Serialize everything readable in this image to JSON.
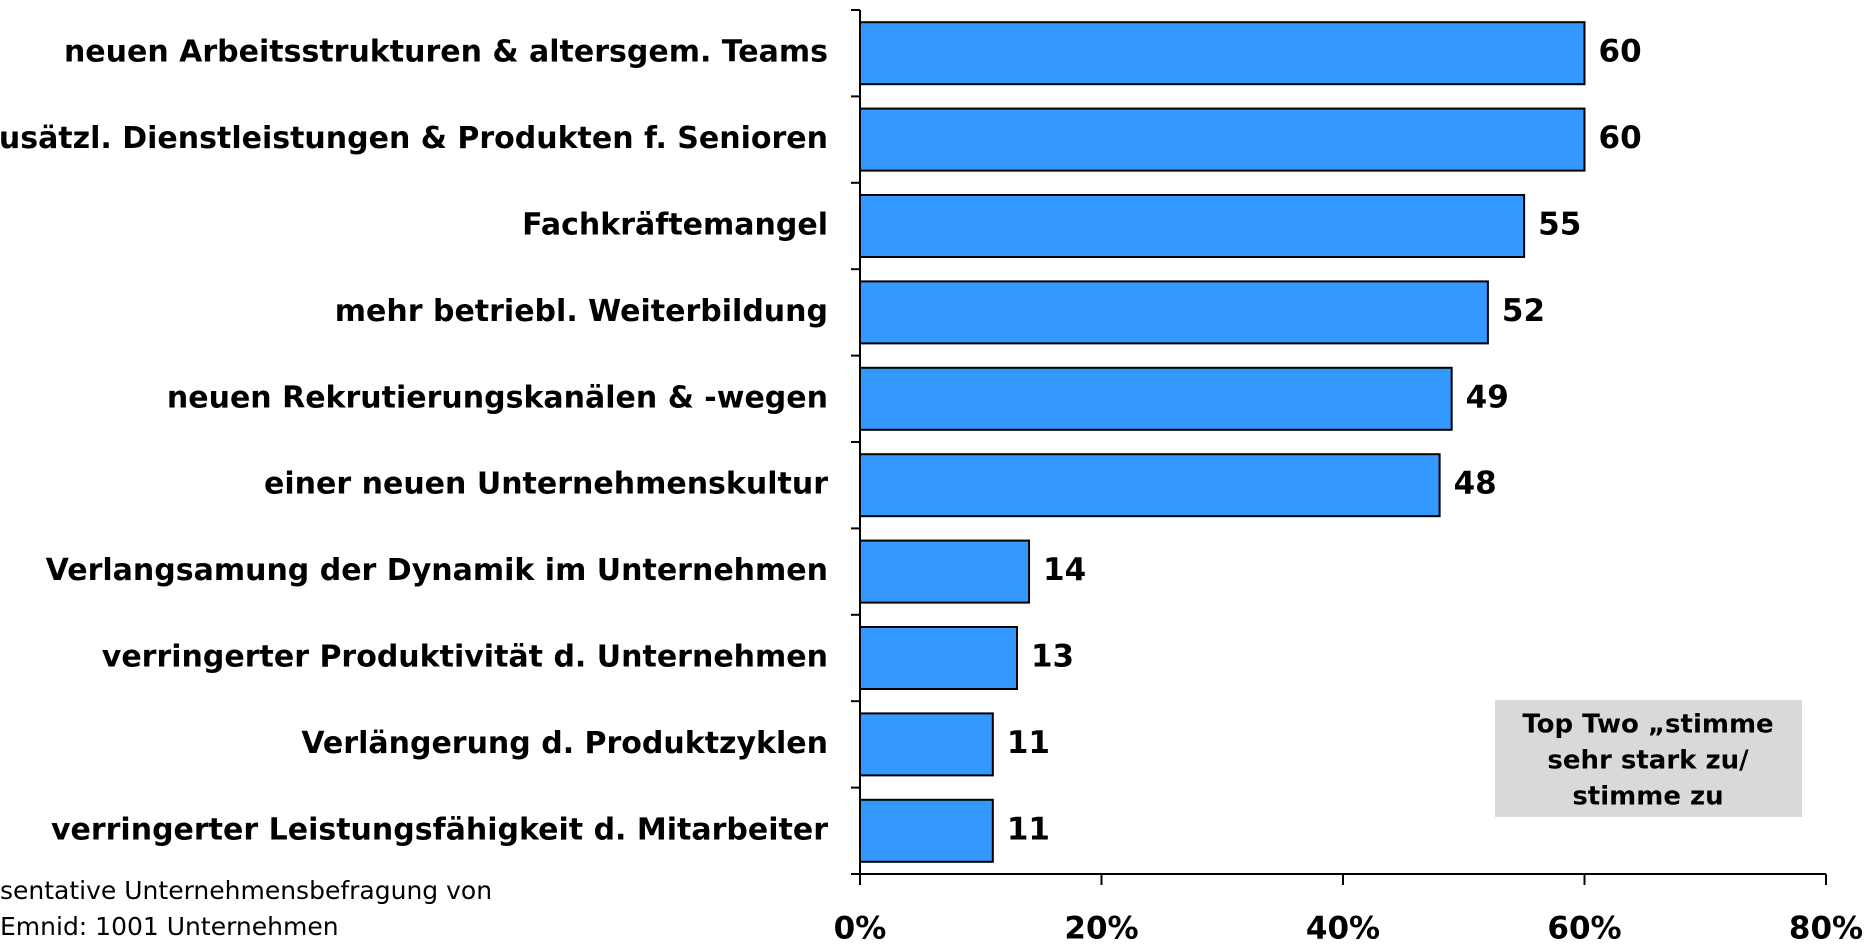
{
  "chart_data": {
    "type": "bar",
    "orientation": "horizontal",
    "categories": [
      "neuen Arbeitsstrukturen & altersgem. Teams",
      "zusätzl. Dienstleistungen & Produkten f. Senioren",
      "Fachkräftemangel",
      "mehr betriebl. Weiterbildung",
      "neuen Rekrutierungskanälen & -wegen",
      "einer neuen Unternehmenskultur",
      "Verlangsamung der Dynamik im Unternehmen",
      "verringerter Produktivität d. Unternehmen",
      "Verlängerung d. Produktzyklen",
      "verringerter Leistungsfähigkeit d. Mitarbeiter"
    ],
    "values": [
      60,
      60,
      55,
      52,
      49,
      48,
      14,
      13,
      11,
      11
    ],
    "color": "#3399ff",
    "xlim": [
      0,
      80
    ],
    "xticks": [
      {
        "value": 0,
        "label": "0%"
      },
      {
        "value": 20,
        "label": "20%"
      },
      {
        "value": 40,
        "label": "40%"
      },
      {
        "value": 60,
        "label": "60%"
      },
      {
        "value": 80,
        "label": "80%"
      }
    ],
    "annotation": [
      "Top Two „stimme",
      "sehr stark zu/",
      "stimme zu"
    ],
    "footnote": [
      "sentative Unternehmensbefragung von",
      "Emnid: 1001 Unternehmen"
    ]
  }
}
